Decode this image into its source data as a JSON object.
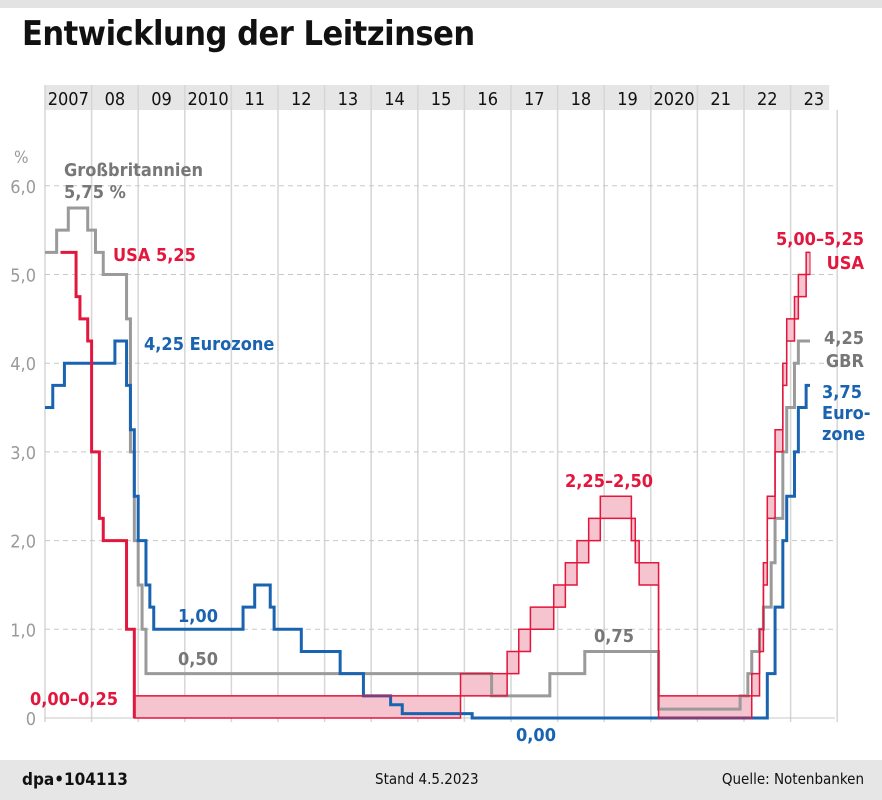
{
  "title": "Entwicklung der Leitzinsen",
  "footer": {
    "agency": "dpa•104113",
    "stand": "Stand 4.5.2023",
    "source": "Quelle: Notenbanken"
  },
  "chart_data": {
    "type": "line",
    "step": true,
    "ylabel": "%",
    "ylim": [
      0,
      6
    ],
    "yticks": [
      "0",
      "1,0",
      "2,0",
      "3,0",
      "4,0",
      "5,0",
      "6,0"
    ],
    "xlim": [
      "2007-01",
      "2024-01"
    ],
    "xticks": [
      "2007",
      "08",
      "09",
      "2010",
      "11",
      "12",
      "13",
      "14",
      "15",
      "16",
      "17",
      "18",
      "19",
      "2020",
      "21",
      "22",
      "23"
    ],
    "grid": true,
    "colors": {
      "uk": "#9a9a9a",
      "usa": "#e3173e",
      "usa_fill": "#f5c4ce",
      "euro": "#1a63b0"
    },
    "series": [
      {
        "id": "uk",
        "name": "Großbritannien",
        "points": [
          [
            "2007-01",
            5.25
          ],
          [
            "2007-04",
            5.5
          ],
          [
            "2007-07",
            5.75
          ],
          [
            "2007-12",
            5.5
          ],
          [
            "2008-02",
            5.25
          ],
          [
            "2008-04",
            5.0
          ],
          [
            "2008-10",
            4.5
          ],
          [
            "2008-11",
            3.0
          ],
          [
            "2008-12",
            2.0
          ],
          [
            "2009-01",
            1.5
          ],
          [
            "2009-02",
            1.0
          ],
          [
            "2009-03",
            0.5
          ],
          [
            "2016-08",
            0.25
          ],
          [
            "2017-11",
            0.5
          ],
          [
            "2018-08",
            0.75
          ],
          [
            "2020-03",
            0.1
          ],
          [
            "2021-12",
            0.25
          ],
          [
            "2022-02",
            0.5
          ],
          [
            "2022-03",
            0.75
          ],
          [
            "2022-05",
            1.0
          ],
          [
            "2022-06",
            1.25
          ],
          [
            "2022-08",
            1.75
          ],
          [
            "2022-09",
            2.25
          ],
          [
            "2022-11",
            3.0
          ],
          [
            "2022-12",
            3.5
          ],
          [
            "2023-02",
            4.0
          ],
          [
            "2023-03",
            4.25
          ],
          [
            "2023-05",
            4.25
          ]
        ]
      },
      {
        "id": "euro",
        "name": "Eurozone",
        "points": [
          [
            "2007-01",
            3.5
          ],
          [
            "2007-03",
            3.75
          ],
          [
            "2007-06",
            4.0
          ],
          [
            "2008-07",
            4.25
          ],
          [
            "2008-10",
            3.75
          ],
          [
            "2008-11",
            3.25
          ],
          [
            "2008-12",
            2.5
          ],
          [
            "2009-01",
            2.0
          ],
          [
            "2009-03",
            1.5
          ],
          [
            "2009-04",
            1.25
          ],
          [
            "2009-05",
            1.0
          ],
          [
            "2011-04",
            1.25
          ],
          [
            "2011-07",
            1.5
          ],
          [
            "2011-11",
            1.25
          ],
          [
            "2011-12",
            1.0
          ],
          [
            "2012-07",
            0.75
          ],
          [
            "2013-05",
            0.5
          ],
          [
            "2013-11",
            0.25
          ],
          [
            "2014-06",
            0.15
          ],
          [
            "2014-09",
            0.05
          ],
          [
            "2016-03",
            0.0
          ],
          [
            "2022-07",
            0.5
          ],
          [
            "2022-09",
            1.25
          ],
          [
            "2022-11",
            2.0
          ],
          [
            "2022-12",
            2.5
          ],
          [
            "2023-02",
            3.0
          ],
          [
            "2023-03",
            3.5
          ],
          [
            "2023-05",
            3.75
          ]
        ]
      },
      {
        "id": "usa",
        "name": "USA",
        "points": [
          [
            "2007-05",
            5.25,
            5.25
          ],
          [
            "2007-09",
            4.75,
            4.75
          ],
          [
            "2007-10",
            4.5,
            4.5
          ],
          [
            "2007-12",
            4.25,
            4.25
          ],
          [
            "2008-01",
            3.0,
            3.0
          ],
          [
            "2008-03",
            2.25,
            2.25
          ],
          [
            "2008-04",
            2.0,
            2.0
          ],
          [
            "2008-10",
            1.0,
            1.0
          ],
          [
            "2008-12",
            0.0,
            0.25
          ],
          [
            "2015-12",
            0.25,
            0.5
          ],
          [
            "2016-12",
            0.5,
            0.75
          ],
          [
            "2017-03",
            0.75,
            1.0
          ],
          [
            "2017-06",
            1.0,
            1.25
          ],
          [
            "2017-12",
            1.25,
            1.5
          ],
          [
            "2018-03",
            1.5,
            1.75
          ],
          [
            "2018-06",
            1.75,
            2.0
          ],
          [
            "2018-09",
            2.0,
            2.25
          ],
          [
            "2018-12",
            2.25,
            2.5
          ],
          [
            "2019-08",
            2.0,
            2.25
          ],
          [
            "2019-09",
            1.75,
            2.0
          ],
          [
            "2019-10",
            1.5,
            1.75
          ],
          [
            "2020-03",
            0.0,
            0.25
          ],
          [
            "2022-03",
            0.25,
            0.5
          ],
          [
            "2022-05",
            0.75,
            1.0
          ],
          [
            "2022-06",
            1.5,
            1.75
          ],
          [
            "2022-07",
            2.25,
            2.5
          ],
          [
            "2022-09",
            3.0,
            3.25
          ],
          [
            "2022-11",
            3.75,
            4.0
          ],
          [
            "2022-12",
            4.25,
            4.5
          ],
          [
            "2023-02",
            4.5,
            4.75
          ],
          [
            "2023-03",
            4.75,
            5.0
          ],
          [
            "2023-05",
            5.0,
            5.25
          ]
        ]
      }
    ],
    "annotations": {
      "uk_start": [
        "Großbritannien",
        "5,75 %"
      ],
      "usa_start": "USA 5,25",
      "euro_start": "4,25 Eurozone",
      "euro_low1": "1,00",
      "uk_low": "0,50",
      "usa_low": "0,00–0,25",
      "usa_peak": "2,25–2,50",
      "uk_mid": "0,75",
      "euro_zero": "0,00",
      "usa_end": [
        "5,00–5,25",
        "USA"
      ],
      "uk_end": [
        "4,25",
        "GBR"
      ],
      "euro_end": [
        "3,75",
        "Euro-",
        "zone"
      ]
    }
  }
}
